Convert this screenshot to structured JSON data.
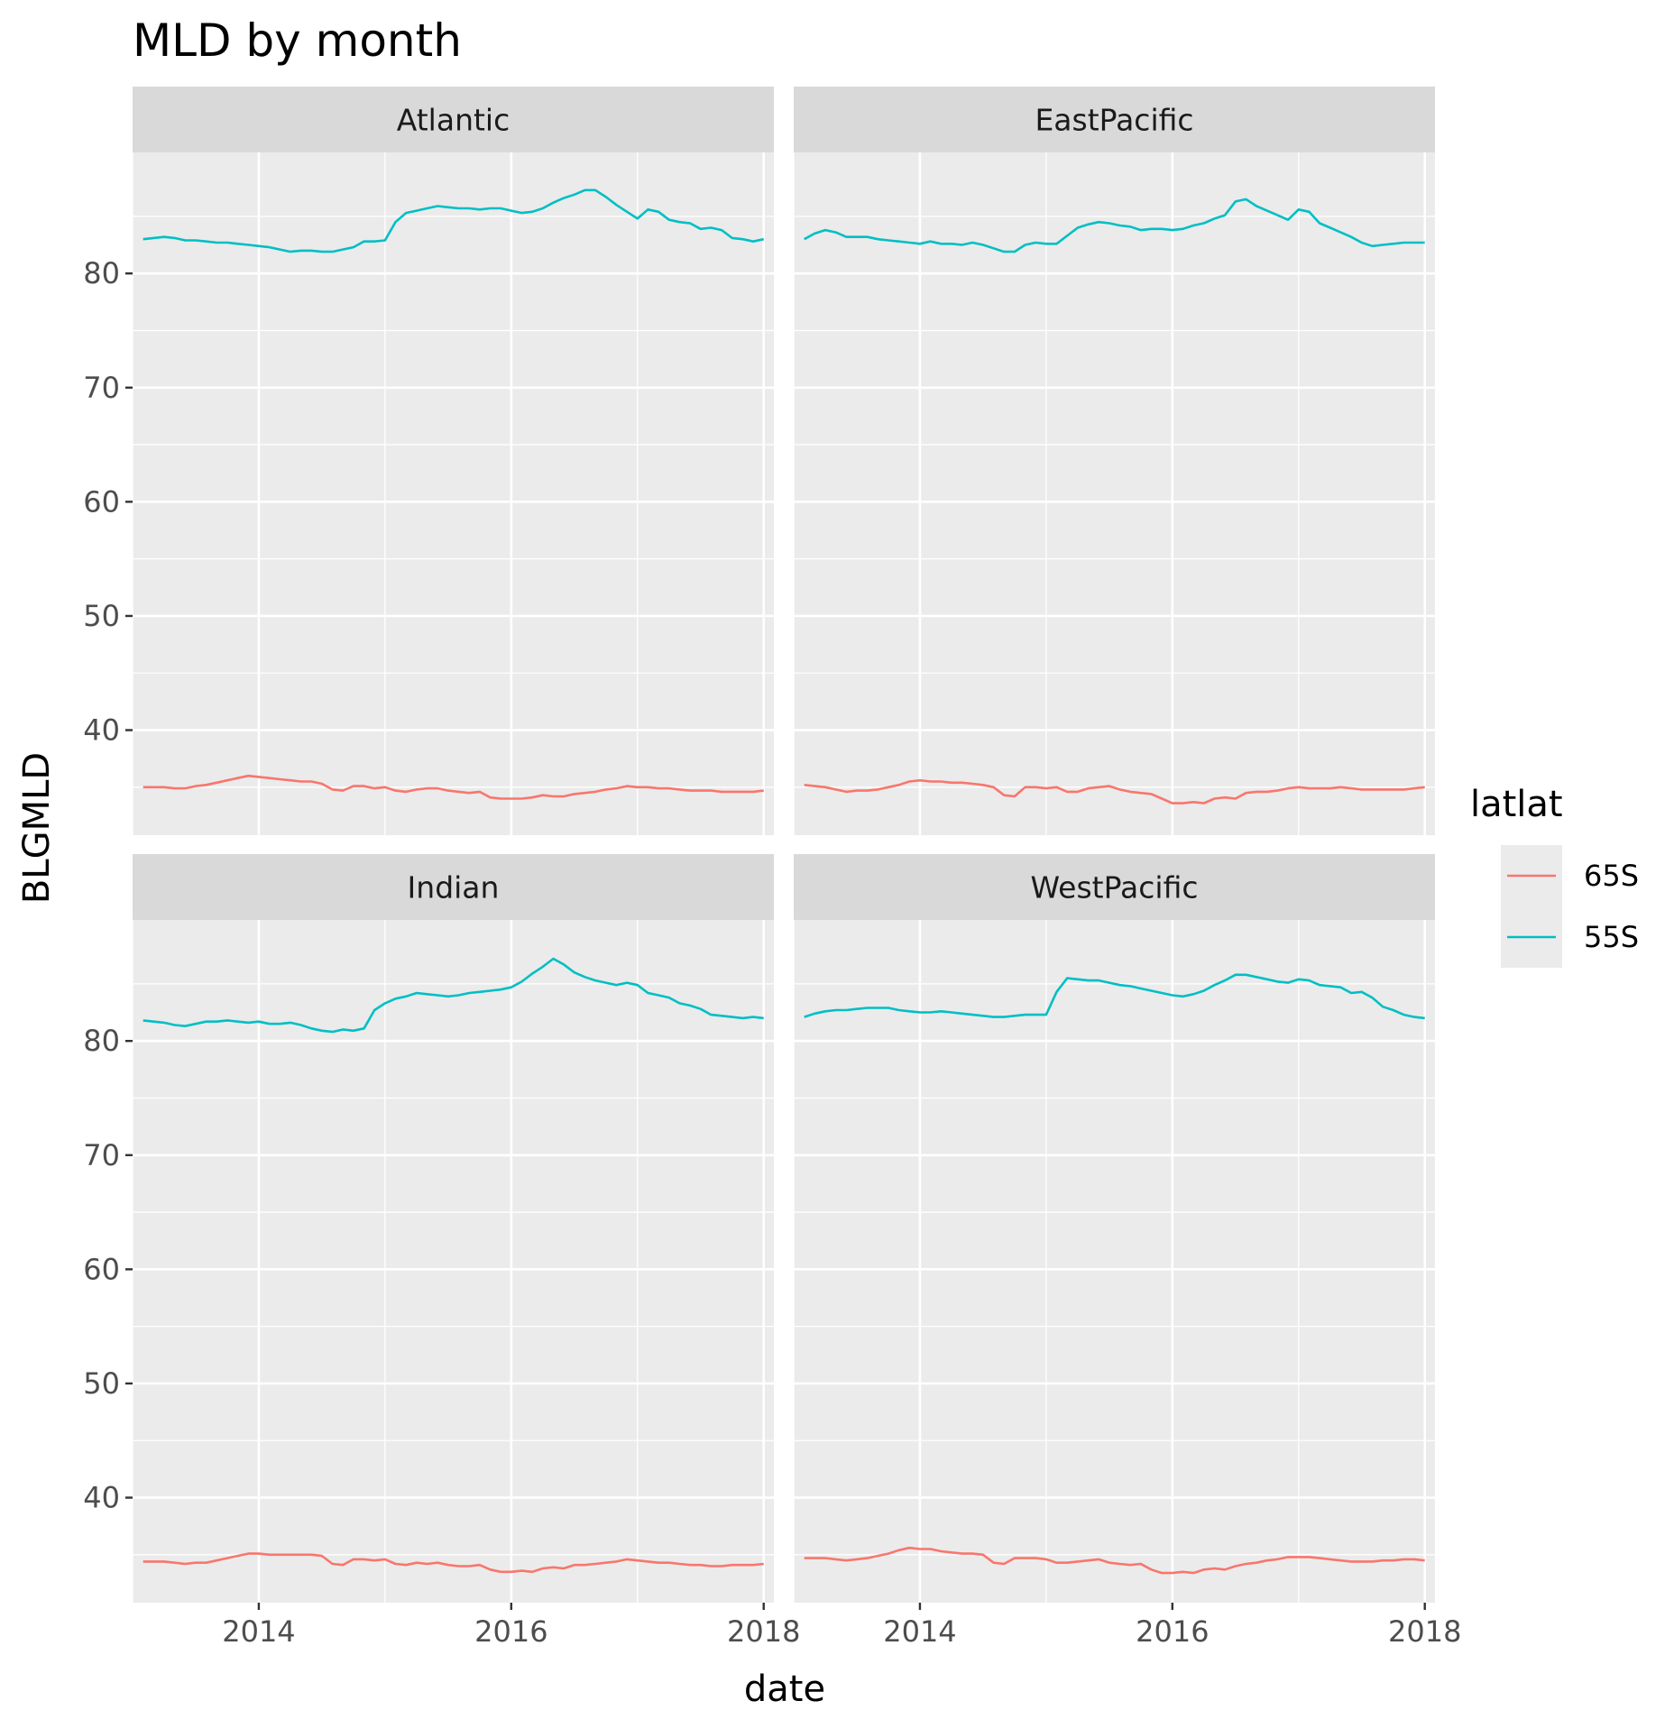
{
  "chart_data": {
    "type": "line",
    "title": "MLD by month",
    "xlabel": "date",
    "ylabel": "BLGMLD",
    "xlim": [
      "2013-01-01",
      "2018-01-31"
    ],
    "ylim": [
      30.8,
      90.6
    ],
    "x_ticks": [
      "2014",
      "2016",
      "2018"
    ],
    "y_ticks": [
      40,
      50,
      60,
      70,
      80
    ],
    "grid": true,
    "legend": {
      "title": "latlat",
      "placement": "right",
      "entries": [
        "65S",
        "55S"
      ]
    },
    "colors": {
      "65S": "#f8766d",
      "55S": "#00bfc4",
      "panel_bg": "#ebebeb",
      "strip_bg": "#d9d9d9",
      "grid": "#ffffff"
    },
    "x_dates": [
      "2013-02",
      "2013-03",
      "2013-04",
      "2013-05",
      "2013-06",
      "2013-07",
      "2013-08",
      "2013-09",
      "2013-10",
      "2013-11",
      "2013-12",
      "2014-01",
      "2014-02",
      "2014-03",
      "2014-04",
      "2014-05",
      "2014-06",
      "2014-07",
      "2014-08",
      "2014-09",
      "2014-10",
      "2014-11",
      "2014-12",
      "2015-01",
      "2015-02",
      "2015-03",
      "2015-04",
      "2015-05",
      "2015-06",
      "2015-07",
      "2015-08",
      "2015-09",
      "2015-10",
      "2015-11",
      "2015-12",
      "2016-01",
      "2016-02",
      "2016-03",
      "2016-04",
      "2016-05",
      "2016-06",
      "2016-07",
      "2016-08",
      "2016-09",
      "2016-10",
      "2016-11",
      "2016-12",
      "2017-01",
      "2017-02",
      "2017-03",
      "2017-04",
      "2017-05",
      "2017-06",
      "2017-07",
      "2017-08",
      "2017-09",
      "2017-10",
      "2017-11",
      "2017-12",
      "2018-01"
    ],
    "panels": [
      {
        "name": "Atlantic",
        "series": [
          {
            "name": "65S",
            "values": [
              35.0,
              35.0,
              35.0,
              34.9,
              34.9,
              35.1,
              35.2,
              35.4,
              35.6,
              35.8,
              36.0,
              35.9,
              35.8,
              35.7,
              35.6,
              35.5,
              35.5,
              35.3,
              34.8,
              34.7,
              35.1,
              35.1,
              34.9,
              35.0,
              34.7,
              34.6,
              34.8,
              34.9,
              34.9,
              34.7,
              34.6,
              34.5,
              34.6,
              34.1,
              34.0,
              34.0,
              34.0,
              34.1,
              34.3,
              34.2,
              34.2,
              34.4,
              34.5,
              34.6,
              34.8,
              34.9,
              35.1,
              35.0,
              35.0,
              34.9,
              34.9,
              34.8,
              34.7,
              34.7,
              34.7,
              34.6,
              34.6,
              34.6,
              34.6,
              34.7
            ]
          },
          {
            "name": "55S",
            "values": [
              83.0,
              83.1,
              83.2,
              83.1,
              82.9,
              82.9,
              82.8,
              82.7,
              82.7,
              82.6,
              82.5,
              82.4,
              82.3,
              82.1,
              81.9,
              82.0,
              82.0,
              81.9,
              81.9,
              82.1,
              82.3,
              82.8,
              82.8,
              82.9,
              84.5,
              85.3,
              85.5,
              85.7,
              85.9,
              85.8,
              85.7,
              85.7,
              85.6,
              85.7,
              85.7,
              85.5,
              85.3,
              85.4,
              85.7,
              86.2,
              86.6,
              86.9,
              87.3,
              87.3,
              86.7,
              86.0,
              85.4,
              84.8,
              85.6,
              85.4,
              84.7,
              84.5,
              84.4,
              83.9,
              84.0,
              83.8,
              83.1,
              83.0,
              82.8,
              83.0
            ]
          }
        ]
      },
      {
        "name": "EastPacific",
        "series": [
          {
            "name": "65S",
            "values": [
              35.2,
              35.1,
              35.0,
              34.8,
              34.6,
              34.7,
              34.7,
              34.8,
              35.0,
              35.2,
              35.5,
              35.6,
              35.5,
              35.5,
              35.4,
              35.4,
              35.3,
              35.2,
              35.0,
              34.3,
              34.2,
              35.0,
              35.0,
              34.9,
              35.0,
              34.6,
              34.6,
              34.9,
              35.0,
              35.1,
              34.8,
              34.6,
              34.5,
              34.4,
              34.0,
              33.6,
              33.6,
              33.7,
              33.6,
              34.0,
              34.1,
              34.0,
              34.5,
              34.6,
              34.6,
              34.7,
              34.9,
              35.0,
              34.9,
              34.9,
              34.9,
              35.0,
              34.9,
              34.8,
              34.8,
              34.8,
              34.8,
              34.8,
              34.9,
              35.0
            ]
          },
          {
            "name": "55S",
            "values": [
              83.0,
              83.5,
              83.8,
              83.6,
              83.2,
              83.2,
              83.2,
              83.0,
              82.9,
              82.8,
              82.7,
              82.6,
              82.8,
              82.6,
              82.6,
              82.5,
              82.7,
              82.5,
              82.2,
              81.9,
              81.9,
              82.5,
              82.7,
              82.6,
              82.6,
              83.3,
              84.0,
              84.3,
              84.5,
              84.4,
              84.2,
              84.1,
              83.8,
              83.9,
              83.9,
              83.8,
              83.9,
              84.2,
              84.4,
              84.8,
              85.1,
              86.3,
              86.5,
              85.9,
              85.5,
              85.1,
              84.7,
              85.6,
              85.4,
              84.4,
              84.0,
              83.6,
              83.2,
              82.7,
              82.4,
              82.5,
              82.6,
              82.7,
              82.7,
              82.7
            ]
          }
        ]
      },
      {
        "name": "Indian",
        "series": [
          {
            "name": "65S",
            "values": [
              34.4,
              34.4,
              34.4,
              34.3,
              34.2,
              34.3,
              34.3,
              34.5,
              34.7,
              34.9,
              35.1,
              35.1,
              35.0,
              35.0,
              35.0,
              35.0,
              35.0,
              34.9,
              34.2,
              34.1,
              34.6,
              34.6,
              34.5,
              34.6,
              34.2,
              34.1,
              34.3,
              34.2,
              34.3,
              34.1,
              34.0,
              34.0,
              34.1,
              33.7,
              33.5,
              33.5,
              33.6,
              33.5,
              33.8,
              33.9,
              33.8,
              34.1,
              34.1,
              34.2,
              34.3,
              34.4,
              34.6,
              34.5,
              34.4,
              34.3,
              34.3,
              34.2,
              34.1,
              34.1,
              34.0,
              34.0,
              34.1,
              34.1,
              34.1,
              34.2
            ]
          },
          {
            "name": "55S",
            "values": [
              81.8,
              81.7,
              81.6,
              81.4,
              81.3,
              81.5,
              81.7,
              81.7,
              81.8,
              81.7,
              81.6,
              81.7,
              81.5,
              81.5,
              81.6,
              81.4,
              81.1,
              80.9,
              80.8,
              81.0,
              80.9,
              81.1,
              82.7,
              83.3,
              83.7,
              83.9,
              84.2,
              84.1,
              84.0,
              83.9,
              84.0,
              84.2,
              84.3,
              84.4,
              84.5,
              84.7,
              85.2,
              85.9,
              86.5,
              87.2,
              86.7,
              86.0,
              85.6,
              85.3,
              85.1,
              84.9,
              85.1,
              84.9,
              84.2,
              84.0,
              83.8,
              83.3,
              83.1,
              82.8,
              82.3,
              82.2,
              82.1,
              82.0,
              82.1,
              82.0
            ]
          }
        ]
      },
      {
        "name": "WestPacific",
        "series": [
          {
            "name": "65S",
            "values": [
              34.7,
              34.7,
              34.7,
              34.6,
              34.5,
              34.6,
              34.7,
              34.9,
              35.1,
              35.4,
              35.6,
              35.5,
              35.5,
              35.3,
              35.2,
              35.1,
              35.1,
              35.0,
              34.3,
              34.2,
              34.7,
              34.7,
              34.7,
              34.6,
              34.3,
              34.3,
              34.4,
              34.5,
              34.6,
              34.3,
              34.2,
              34.1,
              34.2,
              33.7,
              33.4,
              33.4,
              33.5,
              33.4,
              33.7,
              33.8,
              33.7,
              34.0,
              34.2,
              34.3,
              34.5,
              34.6,
              34.8,
              34.8,
              34.8,
              34.7,
              34.6,
              34.5,
              34.4,
              34.4,
              34.4,
              34.5,
              34.5,
              34.6,
              34.6,
              34.5
            ]
          },
          {
            "name": "55S",
            "values": [
              82.1,
              82.4,
              82.6,
              82.7,
              82.7,
              82.8,
              82.9,
              82.9,
              82.9,
              82.7,
              82.6,
              82.5,
              82.5,
              82.6,
              82.5,
              82.4,
              82.3,
              82.2,
              82.1,
              82.1,
              82.2,
              82.3,
              82.3,
              82.3,
              84.3,
              85.5,
              85.4,
              85.3,
              85.3,
              85.1,
              84.9,
              84.8,
              84.6,
              84.4,
              84.2,
              84.0,
              83.9,
              84.1,
              84.4,
              84.9,
              85.3,
              85.8,
              85.8,
              85.6,
              85.4,
              85.2,
              85.1,
              85.4,
              85.3,
              84.9,
              84.8,
              84.7,
              84.2,
              84.3,
              83.8,
              83.0,
              82.7,
              82.3,
              82.1,
              82.0
            ]
          }
        ]
      }
    ]
  }
}
